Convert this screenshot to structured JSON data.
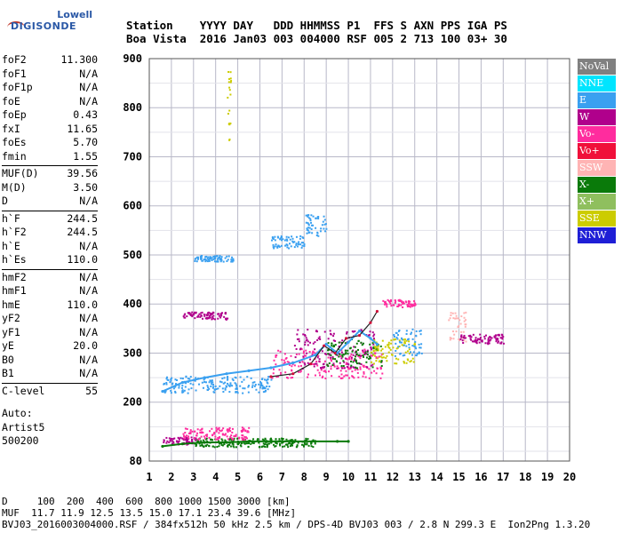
{
  "logo": {
    "line1": "Lowell",
    "line2": "DIGISONDE"
  },
  "header": {
    "line1": "Station    YYYY DAY   DDD HHMMSS P1  FFS S AXN PPS IGA PS",
    "line2": "Boa Vista  2016 Jan03 003 004000 RSF 005 2 713 100 03+ 30"
  },
  "params": [
    [
      {
        "k": "foF2",
        "v": "11.300"
      },
      {
        "k": "foF1",
        "v": "N/A"
      },
      {
        "k": "foF1p",
        "v": "N/A"
      },
      {
        "k": "foE",
        "v": "N/A"
      },
      {
        "k": "foEp",
        "v": "0.43"
      },
      {
        "k": "fxI",
        "v": "11.65"
      },
      {
        "k": "foEs",
        "v": "5.70"
      },
      {
        "k": "fmin",
        "v": "1.55"
      }
    ],
    [
      {
        "k": "MUF(D)",
        "v": "39.56"
      },
      {
        "k": "M(D)",
        "v": "3.50"
      },
      {
        "k": "D",
        "v": "N/A"
      }
    ],
    [
      {
        "k": "h`F",
        "v": "244.5"
      },
      {
        "k": "h`F2",
        "v": "244.5"
      },
      {
        "k": "h`E",
        "v": "N/A"
      },
      {
        "k": "h`Es",
        "v": "110.0"
      }
    ],
    [
      {
        "k": "hmF2",
        "v": "N/A"
      },
      {
        "k": "hmF1",
        "v": "N/A"
      },
      {
        "k": "hmE",
        "v": "110.0"
      },
      {
        "k": "yF2",
        "v": "N/A"
      },
      {
        "k": "yF1",
        "v": "N/A"
      },
      {
        "k": "yE",
        "v": "20.0"
      },
      {
        "k": "B0",
        "v": "N/A"
      },
      {
        "k": "B1",
        "v": "N/A"
      }
    ],
    [
      {
        "k": "C-level",
        "v": "55"
      }
    ]
  ],
  "autoscale": {
    "line1": "Auto:",
    "line2": "Artist5",
    "line3": "500200"
  },
  "legend": [
    {
      "label": "NoVal",
      "color": "#808080"
    },
    {
      "label": "NNE",
      "color": "#00e5ff"
    },
    {
      "label": "E",
      "color": "#3aa0f0"
    },
    {
      "label": "W",
      "color": "#b0008c"
    },
    {
      "label": "Vo-",
      "color": "#ff2c9e"
    },
    {
      "label": "Vo+",
      "color": "#f0103a"
    },
    {
      "label": "SSW",
      "color": "#ffb4b4"
    },
    {
      "label": "X-",
      "color": "#0a7a0a"
    },
    {
      "label": "X+",
      "color": "#8fbf5e"
    },
    {
      "label": "SSE",
      "color": "#cccc00"
    },
    {
      "label": "NNW",
      "color": "#1f1fd6"
    }
  ],
  "footer": {
    "line1": "D     100  200  400  600  800 1000 1500 3000 [km]",
    "line2": "MUF  11.7 11.9 12.5 13.5 15.0 17.1 23.4 39.6 [MHz]",
    "line3": "BVJ03_2016003004000.RSF / 384fx512h 50 kHz 2.5 km / DPS-4D BVJ03 003 / 2.8 N 299.3 E  Ion2Png 1.3.20"
  },
  "chart_data": {
    "type": "scatter",
    "xlabel": "",
    "ylabel": "",
    "xlim": [
      1,
      20
    ],
    "ylim": [
      80,
      900
    ],
    "xticks": [
      1,
      2,
      3,
      4,
      5,
      6,
      7,
      8,
      9,
      10,
      11,
      12,
      13,
      14,
      15,
      16,
      17,
      18,
      19,
      20
    ],
    "yticks": [
      80,
      200,
      300,
      400,
      500,
      600,
      700,
      800,
      900
    ],
    "grid": true,
    "traces": [
      {
        "name": "F-layer trace",
        "x": [
          1.6,
          2.5,
          3.5,
          4.5,
          5.5,
          6.5,
          7.5,
          8.5,
          9.0,
          9.5,
          10.0,
          10.5,
          11.0,
          11.3
        ],
        "y": [
          222,
          240,
          250,
          258,
          264,
          270,
          280,
          296,
          318,
          300,
          322,
          345,
          330,
          318
        ]
      },
      {
        "name": "Es trace",
        "x": [
          1.6,
          2.5,
          3.5,
          4.5,
          5.5,
          6.5,
          7.5,
          8.5,
          9.5,
          10.0
        ],
        "y": [
          110,
          115,
          118,
          118,
          120,
          120,
          120,
          120,
          120,
          120
        ]
      },
      {
        "name": "profile",
        "x": [
          6.5,
          7.5,
          8.3,
          8.9,
          9.4,
          9.9,
          10.5,
          11.0,
          11.3
        ],
        "y": [
          252,
          258,
          278,
          315,
          300,
          330,
          336,
          362,
          385
        ]
      }
    ],
    "clusters": [
      {
        "x": [
          1.6,
          3.2
        ],
        "y": [
          115,
          130
        ],
        "color": "#b0008c"
      },
      {
        "x": [
          3.0,
          8.5
        ],
        "y": [
          110,
          128
        ],
        "color": "#0a7a0a"
      },
      {
        "x": [
          2.5,
          5.5
        ],
        "y": [
          125,
          150
        ],
        "color": "#ff2c9e"
      },
      {
        "x": [
          1.6,
          6.5
        ],
        "y": [
          220,
          255
        ],
        "color": "#3aa0f0"
      },
      {
        "x": [
          6.5,
          11.5
        ],
        "y": [
          250,
          310
        ],
        "color": "#ff2c9e"
      },
      {
        "x": [
          7.5,
          11.2
        ],
        "y": [
          270,
          350
        ],
        "color": "#b0008c"
      },
      {
        "x": [
          9.0,
          11.5
        ],
        "y": [
          270,
          330
        ],
        "color": "#0a7a0a"
      },
      {
        "x": [
          11.0,
          13.0
        ],
        "y": [
          280,
          330
        ],
        "color": "#cccc00"
      },
      {
        "x": [
          12.0,
          13.3
        ],
        "y": [
          295,
          350
        ],
        "color": "#3aa0f0"
      },
      {
        "x": [
          14.5,
          15.3
        ],
        "y": [
          325,
          385
        ],
        "color": "#ffb4b4"
      },
      {
        "x": [
          11.5,
          13.0
        ],
        "y": [
          395,
          410
        ],
        "color": "#ff2c9e"
      },
      {
        "x": [
          15.0,
          17.0
        ],
        "y": [
          320,
          340
        ],
        "color": "#b0008c"
      },
      {
        "x": [
          2.5,
          4.5
        ],
        "y": [
          370,
          385
        ],
        "color": "#b0008c"
      },
      {
        "x": [
          3.0,
          4.8
        ],
        "y": [
          488,
          500
        ],
        "color": "#3aa0f0"
      },
      {
        "x": [
          6.5,
          8.0
        ],
        "y": [
          515,
          540
        ],
        "color": "#3aa0f0"
      },
      {
        "x": [
          8.0,
          9.0
        ],
        "y": [
          540,
          585
        ],
        "color": "#3aa0f0"
      },
      {
        "x": [
          4.5,
          4.7
        ],
        "y": [
          730,
          880
        ],
        "color": "#cccc00"
      }
    ]
  }
}
